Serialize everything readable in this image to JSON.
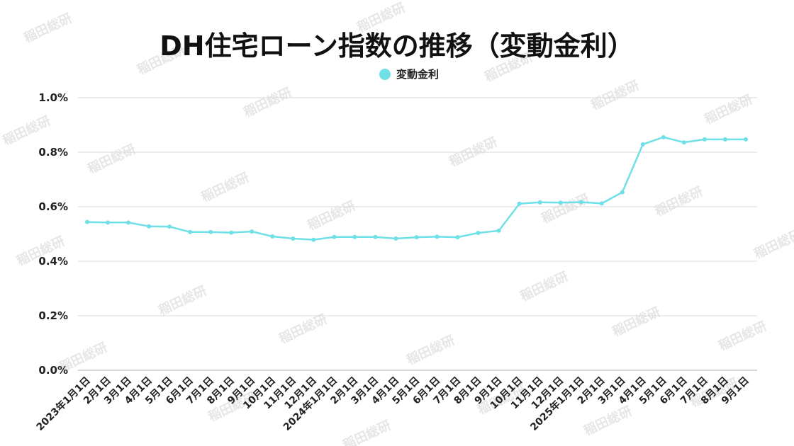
{
  "chart_data": {
    "type": "line",
    "title": "DH住宅ローン指数の推移（変動金利）",
    "legend": {
      "position": "top-center"
    },
    "grid": true,
    "ylim": [
      0,
      1.0
    ],
    "y_ticks": [
      "0.0%",
      "0.2%",
      "0.4%",
      "0.6%",
      "0.8%",
      "1.0%"
    ],
    "y_tick_values": [
      0,
      0.2,
      0.4,
      0.6,
      0.8,
      1.0
    ],
    "categories": [
      "2023年1月1日",
      "2月1日",
      "3月1日",
      "4月1日",
      "5月1日",
      "6月1日",
      "7月1日",
      "8月1日",
      "9月1日",
      "10月1日",
      "11月1日",
      "12月1日",
      "2024年1月1日",
      "2月1日",
      "3月1日",
      "4月1日",
      "5月1日",
      "6月1日",
      "7月1日",
      "8月1日",
      "9月1日",
      "10月1日",
      "11月1日",
      "12月1日",
      "2025年1月1日",
      "2月1日",
      "3月1日",
      "4月1日",
      "5月1日",
      "6月1日",
      "7月1日",
      "8月1日",
      "9月1日"
    ],
    "series": [
      {
        "name": "変動金利",
        "color": "#6ee0e6",
        "values": [
          0.544,
          0.542,
          0.542,
          0.528,
          0.527,
          0.507,
          0.507,
          0.505,
          0.509,
          0.491,
          0.483,
          0.479,
          0.489,
          0.489,
          0.489,
          0.483,
          0.488,
          0.49,
          0.488,
          0.504,
          0.512,
          0.611,
          0.616,
          0.615,
          0.617,
          0.612,
          0.653,
          0.829,
          0.855,
          0.836,
          0.847,
          0.847,
          0.847
        ]
      }
    ]
  },
  "watermark": {
    "text": "稲田総研",
    "color": "#e6e6e6"
  }
}
